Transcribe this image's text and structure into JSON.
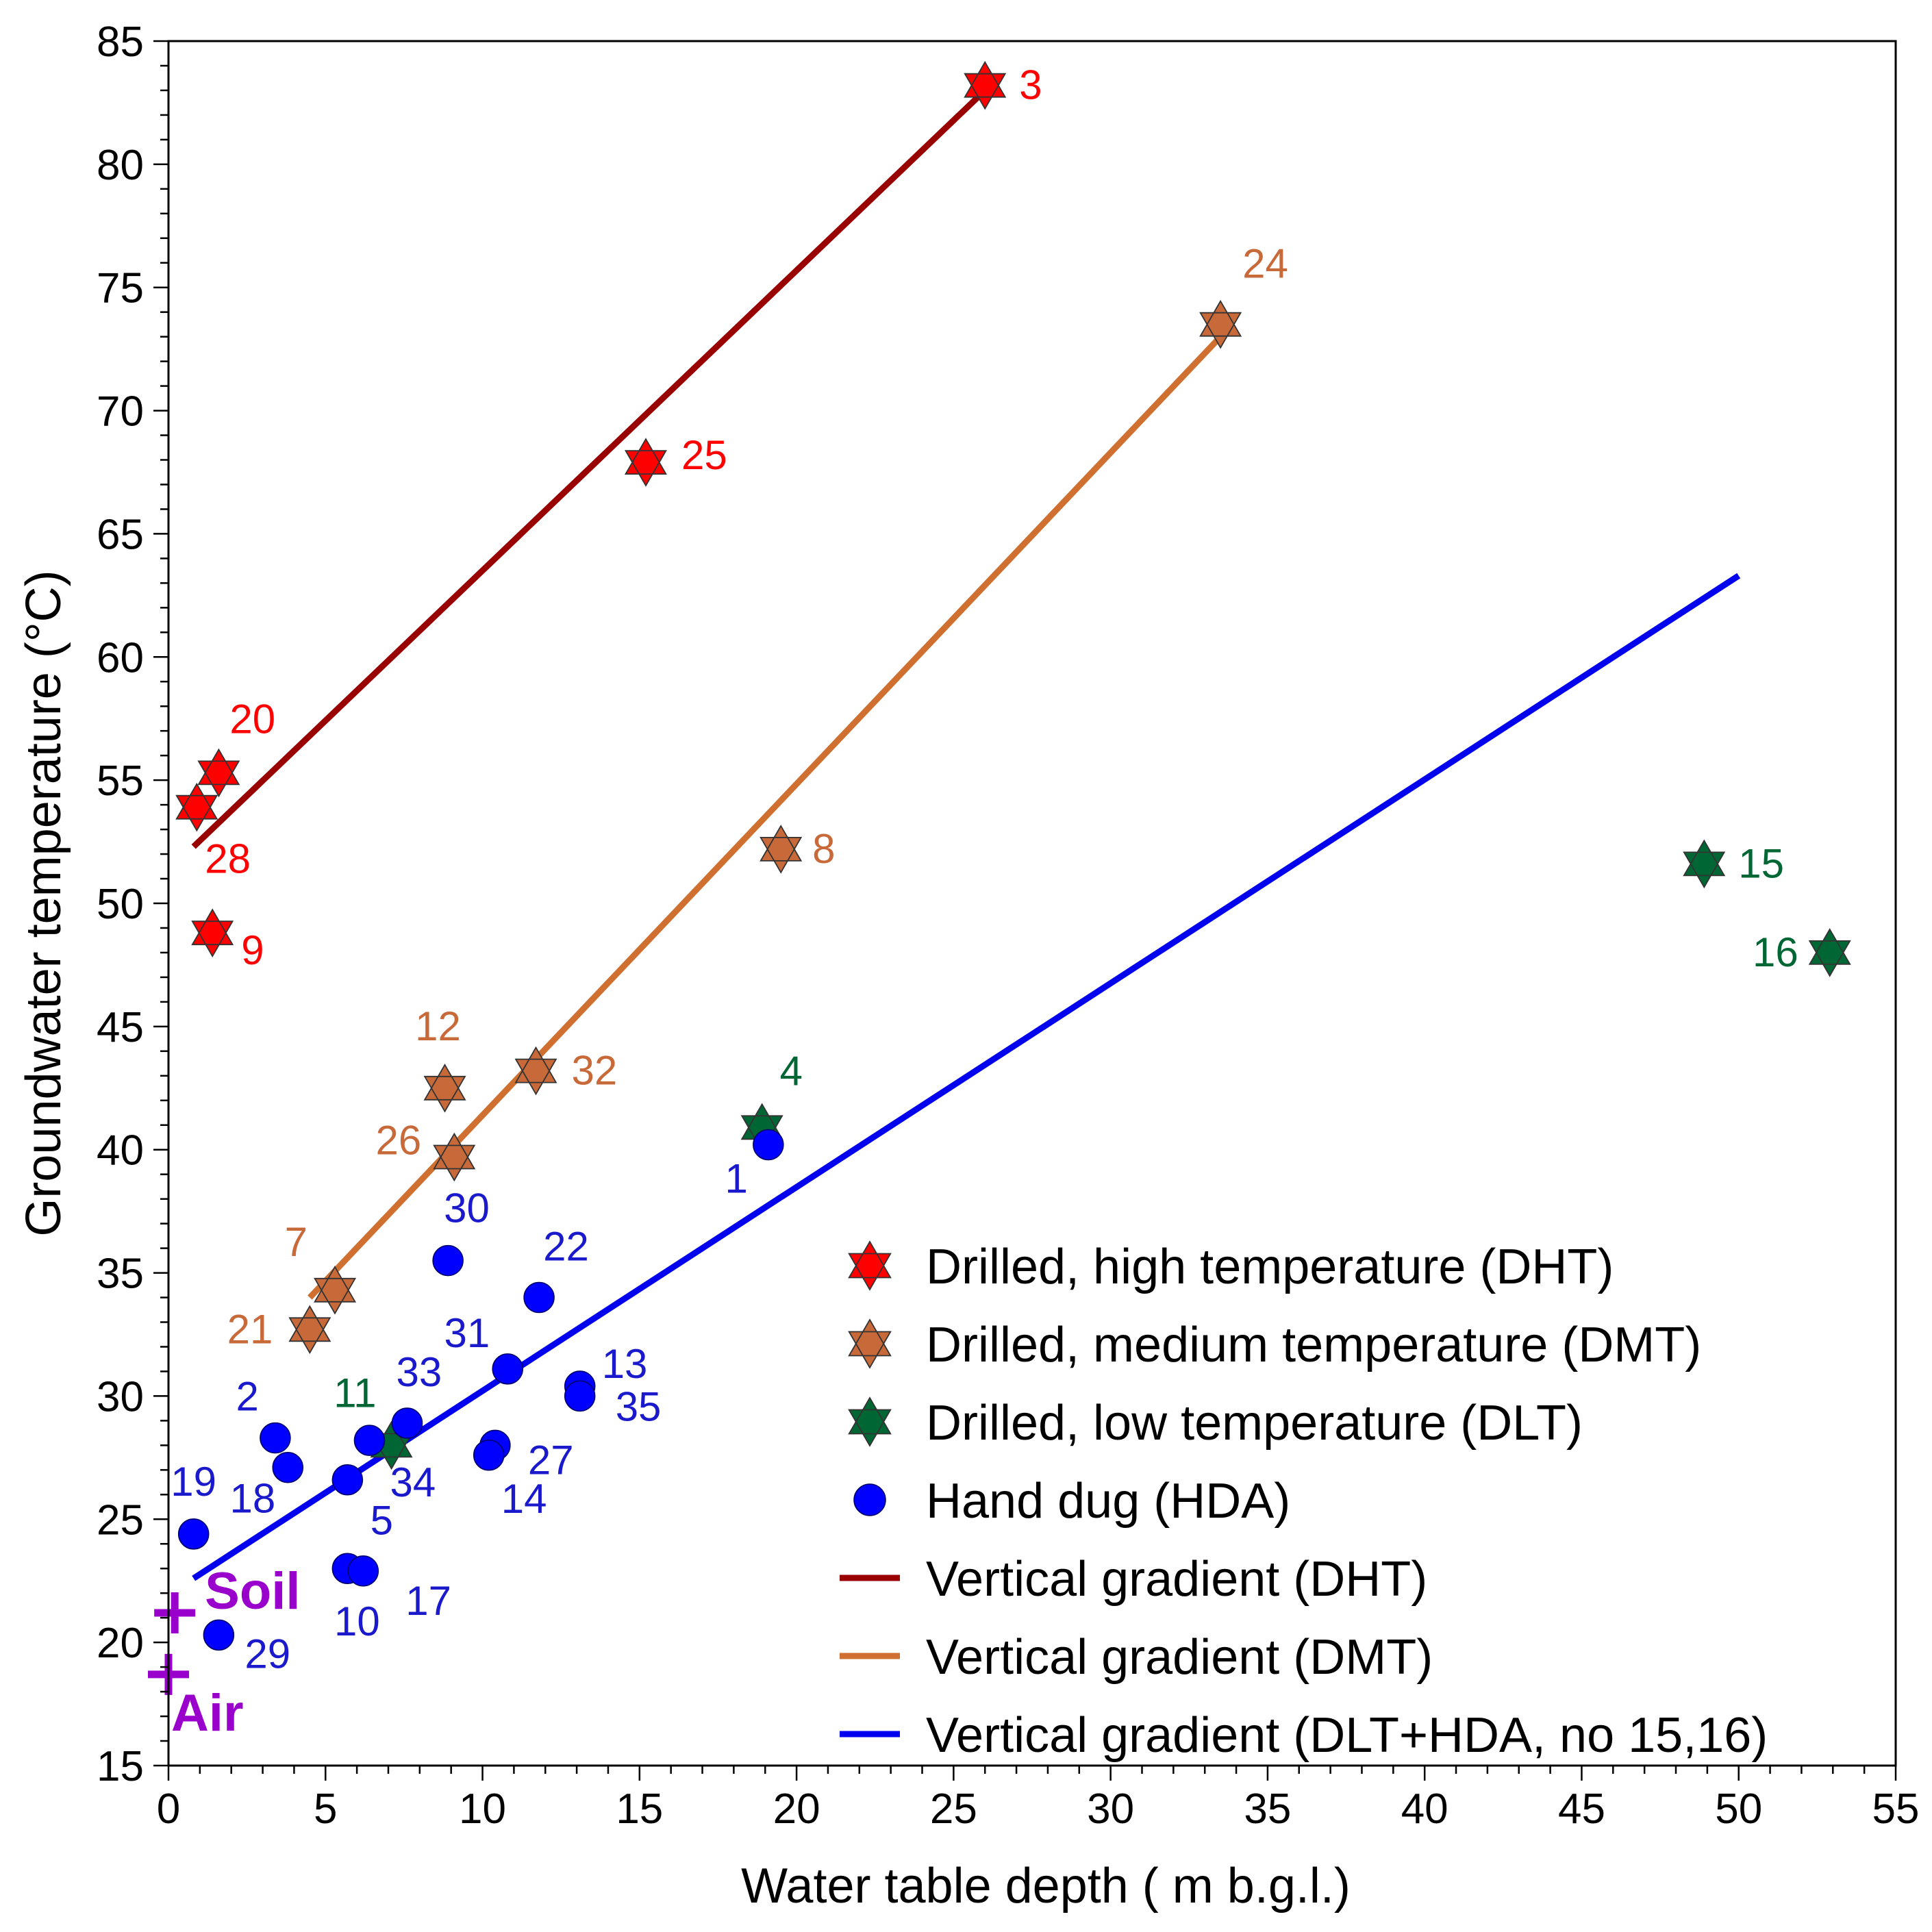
{
  "chart_data": {
    "type": "scatter",
    "xlabel": "Water table depth ( m b.g.l.)",
    "ylabel": "Groundwater temperature (°C)",
    "xlim": [
      0,
      55
    ],
    "ylim": [
      15,
      85
    ],
    "xticks": [
      0,
      5,
      10,
      15,
      20,
      25,
      30,
      35,
      40,
      45,
      50,
      55
    ],
    "yticks": [
      15,
      20,
      25,
      30,
      35,
      40,
      45,
      50,
      55,
      60,
      65,
      70,
      75,
      80,
      85
    ],
    "grid": false,
    "legend_position": "bottom-right",
    "colors": {
      "DHT": "#ff0000",
      "DMT": "#c8693a",
      "DLT": "#006633",
      "HDA": "#0000ff",
      "line_DHT": "#990000",
      "line_DMT": "#d07030",
      "line_DLT_HDA": "#0000ee",
      "reference": "#9900cc",
      "label_HDA": "#1a1acc"
    },
    "series": [
      {
        "key": "DHT",
        "name": "Drilled, high temperature (DHT)",
        "marker": "star6",
        "points": [
          {
            "id": "3",
            "x": 26.0,
            "y": 83.2
          },
          {
            "id": "25",
            "x": 15.2,
            "y": 67.9
          },
          {
            "id": "20",
            "x": 1.6,
            "y": 55.3
          },
          {
            "id": "28",
            "x": 0.9,
            "y": 53.9
          },
          {
            "id": "9",
            "x": 1.4,
            "y": 48.8
          }
        ]
      },
      {
        "key": "DMT",
        "name": "Drilled, medium temperature (DMT)",
        "marker": "star6",
        "points": [
          {
            "id": "24",
            "x": 33.5,
            "y": 73.5
          },
          {
            "id": "8",
            "x": 19.5,
            "y": 52.2
          },
          {
            "id": "32",
            "x": 11.7,
            "y": 43.2
          },
          {
            "id": "12",
            "x": 8.8,
            "y": 42.5
          },
          {
            "id": "26",
            "x": 9.1,
            "y": 39.7
          },
          {
            "id": "7",
            "x": 5.3,
            "y": 34.3
          },
          {
            "id": "21",
            "x": 4.5,
            "y": 32.7
          }
        ]
      },
      {
        "key": "DLT",
        "name": "Drilled, low temperature (DLT)",
        "marker": "star6",
        "points": [
          {
            "id": "4",
            "x": 18.9,
            "y": 40.9
          },
          {
            "id": "15",
            "x": 48.9,
            "y": 51.6
          },
          {
            "id": "16",
            "x": 52.9,
            "y": 48.0
          },
          {
            "id": "11",
            "x": 7.1,
            "y": 28.0
          }
        ]
      },
      {
        "key": "HDA",
        "name": "Hand dug (HDA)",
        "marker": "circle",
        "points": [
          {
            "id": "1",
            "x": 19.1,
            "y": 40.2
          },
          {
            "id": "30",
            "x": 8.9,
            "y": 35.5
          },
          {
            "id": "22",
            "x": 11.8,
            "y": 34.0
          },
          {
            "id": "31",
            "x": 10.8,
            "y": 31.1
          },
          {
            "id": "13",
            "x": 13.1,
            "y": 30.4
          },
          {
            "id": "35",
            "x": 13.1,
            "y": 30.0
          },
          {
            "id": "33",
            "x": 7.6,
            "y": 28.9
          },
          {
            "id": "34",
            "x": 6.4,
            "y": 28.2
          },
          {
            "id": "27",
            "x": 10.4,
            "y": 28.0
          },
          {
            "id": "14",
            "x": 10.2,
            "y": 27.6
          },
          {
            "id": "2",
            "x": 3.4,
            "y": 28.3
          },
          {
            "id": "18",
            "x": 3.8,
            "y": 27.1
          },
          {
            "id": "5",
            "x": 5.7,
            "y": 26.6
          },
          {
            "id": "19",
            "x": 0.8,
            "y": 24.4
          },
          {
            "id": "10",
            "x": 5.7,
            "y": 23.0
          },
          {
            "id": "17",
            "x": 6.2,
            "y": 22.9
          },
          {
            "id": "29",
            "x": 1.6,
            "y": 20.3
          }
        ]
      }
    ],
    "trend_lines": [
      {
        "key": "line_DHT",
        "name": "Vertical gradient (DHT)",
        "x": [
          0.8,
          26.0
        ],
        "y": [
          52.3,
          83.0
        ]
      },
      {
        "key": "line_DMT",
        "name": "Vertical gradient (DMT)",
        "x": [
          4.5,
          33.5
        ],
        "y": [
          34.0,
          73.0
        ]
      },
      {
        "key": "line_DLT_HDA",
        "name": "Vertical gradient (DLT+HDA, no 15,16)",
        "x": [
          0.8,
          50.0
        ],
        "y": [
          22.6,
          63.3
        ]
      }
    ],
    "reference_points": [
      {
        "label": "Soil",
        "x": 0.2,
        "y": 21.2
      },
      {
        "label": "Air",
        "x": 0.0,
        "y": 18.7
      }
    ],
    "legend": [
      {
        "label": "Drilled, high temperature (DHT)",
        "symbol": "star6",
        "color_key": "DHT"
      },
      {
        "label": "Drilled, medium temperature (DMT)",
        "symbol": "star6",
        "color_key": "DMT"
      },
      {
        "label": "Drilled, low temperature (DLT)",
        "symbol": "star6",
        "color_key": "DLT"
      },
      {
        "label": "Hand dug (HDA)",
        "symbol": "circle",
        "color_key": "HDA"
      },
      {
        "label": "Vertical gradient (DHT)",
        "symbol": "line",
        "color_key": "line_DHT"
      },
      {
        "label": "Vertical gradient (DMT)",
        "symbol": "line",
        "color_key": "line_DMT"
      },
      {
        "label": "Vertical gradient (DLT+HDA, no 15,16)",
        "symbol": "line",
        "color_key": "line_DLT_HDA"
      }
    ]
  }
}
